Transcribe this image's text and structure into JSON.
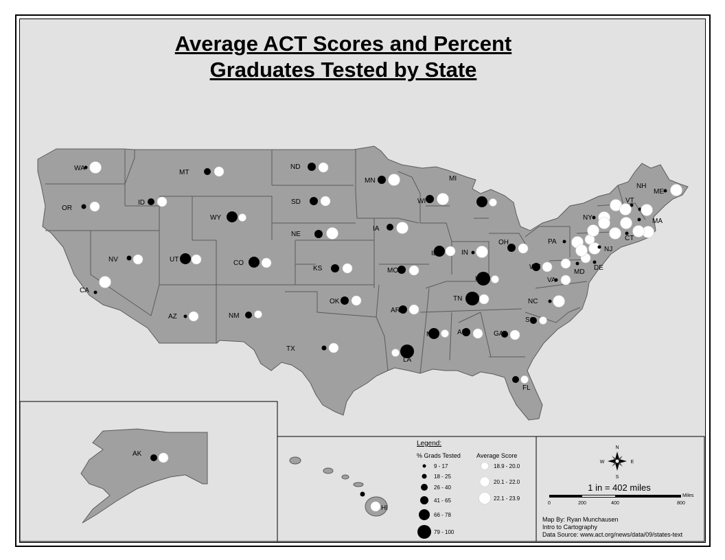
{
  "title": {
    "line1": "Average ACT Scores and Percent",
    "line2": "Graduates Tested by State"
  },
  "colors": {
    "background": "#e2e2e2",
    "state_fill": "#a0a0a0",
    "state_border": "#5a5a5a",
    "tested_symbol": "#000000",
    "score_symbol": "#ffffff"
  },
  "legend": {
    "title": "Legend:",
    "grads_header": "% Grads Tested",
    "score_header": "Average Score",
    "grads_classes": [
      "9 - 17",
      "18 - 25",
      "26 - 40",
      "41 - 65",
      "66 - 78",
      "79 - 100"
    ],
    "score_classes": [
      "18.9 - 20.0",
      "20.1 - 22.0",
      "22.1 - 23.9"
    ]
  },
  "scale": {
    "text": "1 in = 402 miles",
    "unit": "Miles",
    "ticks": [
      "0",
      "200",
      "400",
      "800"
    ]
  },
  "compass": {
    "n": "N",
    "s": "S",
    "e": "E",
    "w": "W"
  },
  "credits": {
    "line1": "Map By: Ryan Munchausen",
    "line2": "Intro to Cartography",
    "line3": "Data Source: www.act.org/news/data/09/states-text"
  },
  "states": [
    {
      "label": "WA",
      "tested_class": 1,
      "score_class": 3
    },
    {
      "label": "OR",
      "tested_class": 2,
      "score_class": 2
    },
    {
      "label": "CA",
      "tested_class": 1,
      "score_class": 3
    },
    {
      "label": "MT",
      "tested_class": 3,
      "score_class": 2
    },
    {
      "label": "ID",
      "tested_class": 3,
      "score_class": 2
    },
    {
      "label": "NV",
      "tested_class": 2,
      "score_class": 2
    },
    {
      "label": "WY",
      "tested_class": 5,
      "score_class": 1
    },
    {
      "label": "UT",
      "tested_class": 5,
      "score_class": 2
    },
    {
      "label": "AZ",
      "tested_class": 1,
      "score_class": 2
    },
    {
      "label": "CO",
      "tested_class": 5,
      "score_class": 2
    },
    {
      "label": "NM",
      "tested_class": 3,
      "score_class": 1
    },
    {
      "label": "ND",
      "tested_class": 4,
      "score_class": 2
    },
    {
      "label": "SD",
      "tested_class": 4,
      "score_class": 2
    },
    {
      "label": "NE",
      "tested_class": 4,
      "score_class": 3
    },
    {
      "label": "KS",
      "tested_class": 4,
      "score_class": 2
    },
    {
      "label": "OK",
      "tested_class": 4,
      "score_class": 2
    },
    {
      "label": "TX",
      "tested_class": 2,
      "score_class": 2
    },
    {
      "label": "MN",
      "tested_class": 4,
      "score_class": 3
    },
    {
      "label": "IA",
      "tested_class": 3,
      "score_class": 3
    },
    {
      "label": "MO",
      "tested_class": 4,
      "score_class": 2
    },
    {
      "label": "AR",
      "tested_class": 4,
      "score_class": 2
    },
    {
      "label": "LA",
      "tested_class": 6,
      "score_class": 1
    },
    {
      "label": "WI",
      "tested_class": 4,
      "score_class": 3
    },
    {
      "label": "MI",
      "tested_class": 5,
      "score_class": 1
    },
    {
      "label": "IL",
      "tested_class": 5,
      "score_class": 2
    },
    {
      "label": "IN",
      "tested_class": 1,
      "score_class": 3
    },
    {
      "label": "OH",
      "tested_class": 4,
      "score_class": 2
    },
    {
      "label": "KY",
      "tested_class": 6,
      "score_class": 1
    },
    {
      "label": "TN",
      "tested_class": 6,
      "score_class": 2
    },
    {
      "label": "MS",
      "tested_class": 5,
      "score_class": 1
    },
    {
      "label": "AL",
      "tested_class": 4,
      "score_class": 2
    },
    {
      "label": "GA",
      "tested_class": 3,
      "score_class": 2
    },
    {
      "label": "FL",
      "tested_class": 3,
      "score_class": 1
    },
    {
      "label": "SC",
      "tested_class": 3,
      "score_class": 1
    },
    {
      "label": "NC",
      "tested_class": 1,
      "score_class": 3
    },
    {
      "label": "VA",
      "tested_class": 1,
      "score_class": 2
    },
    {
      "label": "WV",
      "tested_class": 4,
      "score_class": 2
    },
    {
      "label": "PA",
      "tested_class": 1,
      "score_class": 3
    },
    {
      "label": "NY",
      "tested_class": 1,
      "score_class": 3
    },
    {
      "label": "MD",
      "tested_class": 1,
      "score_class": 2
    },
    {
      "label": "DE",
      "tested_class": 1,
      "score_class": 2
    },
    {
      "label": "NJ",
      "tested_class": 1,
      "score_class": 3
    },
    {
      "label": "CT",
      "tested_class": 1,
      "score_class": 3
    },
    {
      "label": "MA",
      "tested_class": 1,
      "score_class": 3
    },
    {
      "label": "VT",
      "tested_class": 1,
      "score_class": 3
    },
    {
      "label": "NH",
      "tested_class": 1,
      "score_class": 3
    },
    {
      "label": "ME",
      "tested_class": 1,
      "score_class": 3
    },
    {
      "label": "AK",
      "tested_class": 3,
      "score_class": 2
    },
    {
      "label": "HI",
      "tested_class": 2,
      "score_class": 2
    }
  ]
}
